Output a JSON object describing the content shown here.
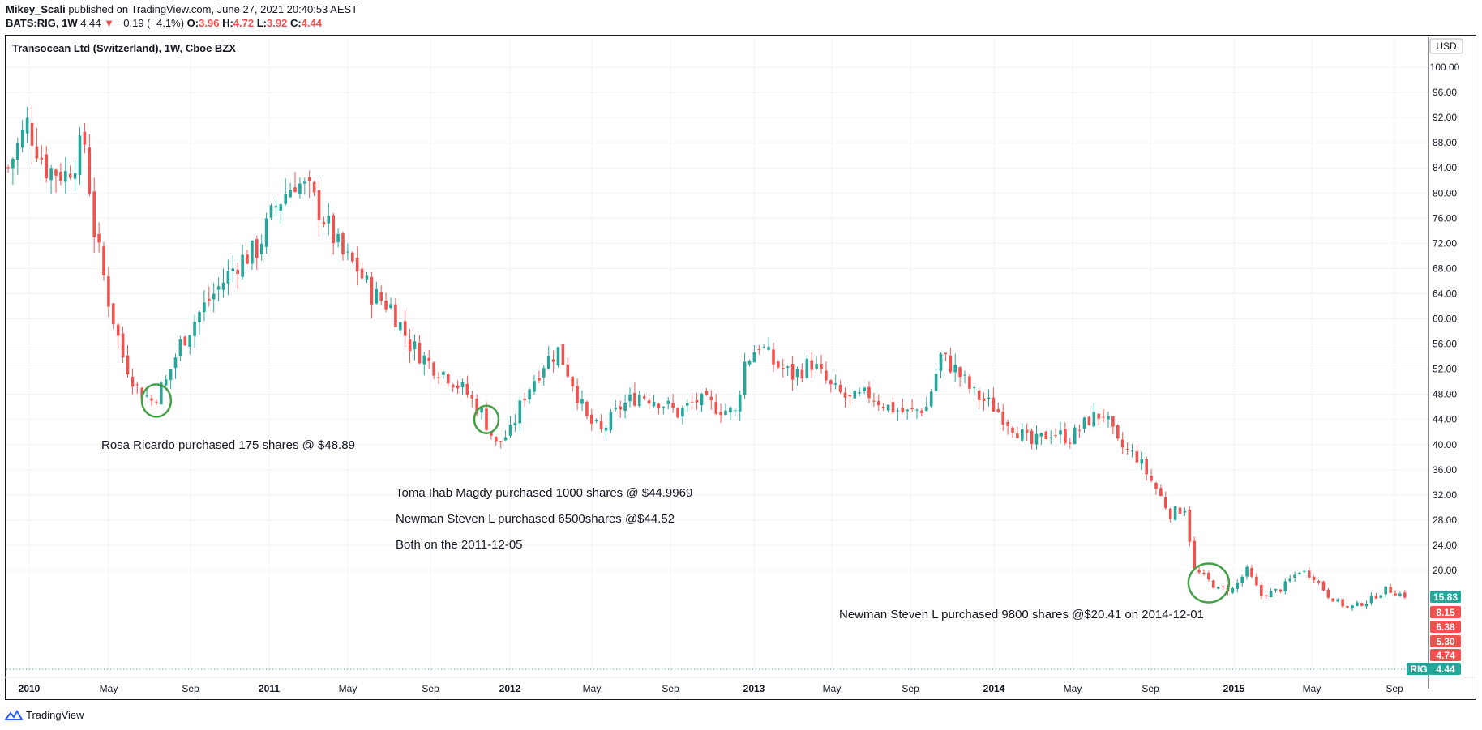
{
  "header": {
    "author": "Mikey_Scali",
    "published_text": "published on TradingView.com, June 27, 2021 20:40:53 AEST",
    "symbol": "BATS:RIG, 1W",
    "last": "4.44",
    "arrow": "▼",
    "change": "−0.19 (−4.1%)",
    "o_label": "O:",
    "o_val": "3.96",
    "h_label": "H:",
    "h_val": "4.72",
    "l_label": "L:",
    "l_val": "3.92",
    "c_label": "C:",
    "c_val": "4.44"
  },
  "chart_title": "Transocean Ltd (Switzerland), 1W, Cboe BZX",
  "currency": "USD",
  "annotations": {
    "rosa": "Rosa Ricardo purchased 175 shares @ $48.89",
    "toma": "Toma Ihab Magdy purchased 1000 shares @ $44.9969",
    "newman1": "Newman Steven L purchased 6500shares @$44.52",
    "both": "Both on the 2011-12-05",
    "newman2": "Newman Steven L purchased 9800 shares @$20.41 on 2014-12-01"
  },
  "price_badges": [
    {
      "label": "15.83",
      "color": "#26a69a"
    },
    {
      "label": "8.15",
      "color": "#ef5350"
    },
    {
      "label": "6.38",
      "color": "#ef5350"
    },
    {
      "label": "5.30",
      "color": "#ef5350"
    },
    {
      "label": "4.74",
      "color": "#ef5350"
    }
  ],
  "current_tag": {
    "symbol": "RIG",
    "value": "4.44",
    "color": "#26a69a"
  },
  "footer": {
    "brand": "TradingView"
  },
  "colors": {
    "up": "#26a69a",
    "down": "#ef5350",
    "circle": "#43a047",
    "grid": "#f0f3fa"
  },
  "chart_data": {
    "type": "candlestick",
    "title": "Transocean Ltd (Switzerland), 1W, Cboe BZX",
    "y_axis": {
      "ticks": [
        "100.00",
        "96.00",
        "92.00",
        "88.00",
        "84.00",
        "80.00",
        "76.00",
        "72.00",
        "68.00",
        "64.00",
        "60.00",
        "56.00",
        "52.00",
        "48.00",
        "44.00",
        "40.00",
        "36.00",
        "32.00",
        "28.00",
        "24.00",
        "20.00"
      ],
      "unit": "USD"
    },
    "x_axis": {
      "ticks": [
        "2010",
        "May",
        "Sep",
        "2011",
        "May",
        "Sep",
        "2012",
        "May",
        "Sep",
        "2013",
        "May",
        "Sep",
        "2014",
        "May",
        "Sep",
        "2015",
        "May",
        "Sep"
      ]
    },
    "close_path": [
      {
        "t": 0,
        "c": 84
      },
      {
        "t": 4,
        "c": 91
      },
      {
        "t": 8,
        "c": 84
      },
      {
        "t": 12,
        "c": 83
      },
      {
        "t": 16,
        "c": 88
      },
      {
        "t": 18,
        "c": 74
      },
      {
        "t": 21,
        "c": 63
      },
      {
        "t": 24,
        "c": 54
      },
      {
        "t": 27,
        "c": 49
      },
      {
        "t": 30,
        "c": 47
      },
      {
        "t": 33,
        "c": 50
      },
      {
        "t": 36,
        "c": 56
      },
      {
        "t": 40,
        "c": 61
      },
      {
        "t": 44,
        "c": 65
      },
      {
        "t": 48,
        "c": 69
      },
      {
        "t": 52,
        "c": 71
      },
      {
        "t": 56,
        "c": 78
      },
      {
        "t": 60,
        "c": 82
      },
      {
        "t": 63,
        "c": 80
      },
      {
        "t": 66,
        "c": 76
      },
      {
        "t": 70,
        "c": 70
      },
      {
        "t": 73,
        "c": 68
      },
      {
        "t": 76,
        "c": 64
      },
      {
        "t": 80,
        "c": 62
      },
      {
        "t": 84,
        "c": 56
      },
      {
        "t": 88,
        "c": 53
      },
      {
        "t": 92,
        "c": 51
      },
      {
        "t": 96,
        "c": 48
      },
      {
        "t": 99,
        "c": 45
      },
      {
        "t": 102,
        "c": 40
      },
      {
        "t": 105,
        "c": 42
      },
      {
        "t": 108,
        "c": 48
      },
      {
        "t": 112,
        "c": 53
      },
      {
        "t": 115,
        "c": 55
      },
      {
        "t": 118,
        "c": 50
      },
      {
        "t": 121,
        "c": 44
      },
      {
        "t": 124,
        "c": 42
      },
      {
        "t": 128,
        "c": 46
      },
      {
        "t": 132,
        "c": 48
      },
      {
        "t": 136,
        "c": 47
      },
      {
        "t": 140,
        "c": 45
      },
      {
        "t": 144,
        "c": 47
      },
      {
        "t": 148,
        "c": 46
      },
      {
        "t": 152,
        "c": 45
      },
      {
        "t": 154,
        "c": 53
      },
      {
        "t": 157,
        "c": 56
      },
      {
        "t": 160,
        "c": 53
      },
      {
        "t": 164,
        "c": 51
      },
      {
        "t": 168,
        "c": 53
      },
      {
        "t": 172,
        "c": 49
      },
      {
        "t": 176,
        "c": 47
      },
      {
        "t": 180,
        "c": 48
      },
      {
        "t": 184,
        "c": 46
      },
      {
        "t": 188,
        "c": 45
      },
      {
        "t": 192,
        "c": 46
      },
      {
        "t": 195,
        "c": 54
      },
      {
        "t": 198,
        "c": 52
      },
      {
        "t": 202,
        "c": 48
      },
      {
        "t": 206,
        "c": 46
      },
      {
        "t": 210,
        "c": 43
      },
      {
        "t": 214,
        "c": 40
      },
      {
        "t": 218,
        "c": 42
      },
      {
        "t": 222,
        "c": 41
      },
      {
        "t": 226,
        "c": 44
      },
      {
        "t": 229,
        "c": 45
      },
      {
        "t": 232,
        "c": 40
      },
      {
        "t": 236,
        "c": 38
      },
      {
        "t": 240,
        "c": 33
      },
      {
        "t": 243,
        "c": 29
      },
      {
        "t": 246,
        "c": 30
      },
      {
        "t": 248,
        "c": 20
      },
      {
        "t": 250,
        "c": 19
      },
      {
        "t": 253,
        "c": 17
      },
      {
        "t": 256,
        "c": 17
      },
      {
        "t": 259,
        "c": 20
      },
      {
        "t": 262,
        "c": 16
      },
      {
        "t": 266,
        "c": 17
      },
      {
        "t": 270,
        "c": 20
      },
      {
        "t": 273,
        "c": 19
      },
      {
        "t": 276,
        "c": 16
      },
      {
        "t": 280,
        "c": 14
      },
      {
        "t": 284,
        "c": 15
      },
      {
        "t": 288,
        "c": 17
      },
      {
        "t": 292,
        "c": 16
      }
    ],
    "annotated_points": [
      {
        "name": "rosa-circle",
        "t": 31,
        "price": 47
      },
      {
        "name": "toma-circle",
        "t": 100,
        "price": 44
      },
      {
        "name": "newman2-circle",
        "t": 251,
        "price": 18
      }
    ]
  }
}
